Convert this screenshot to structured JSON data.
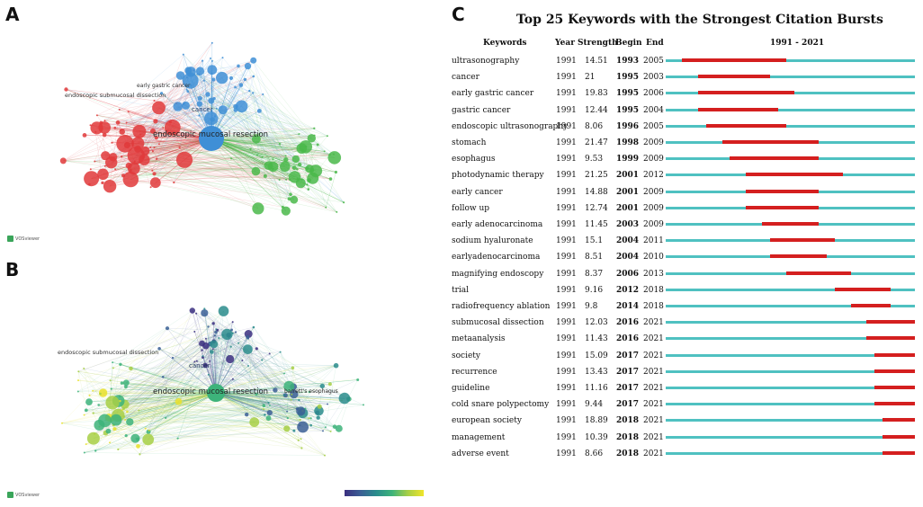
{
  "panels": {
    "a": "A",
    "b": "B",
    "c": "C"
  },
  "network_a": {
    "labels": {
      "cancer": "cancer",
      "emr": "endoscopic mucosal resection",
      "esd": "endoscopic submucosal dissection",
      "early_gastric": "early gastric cancer"
    },
    "logo": "VOSviewer"
  },
  "network_b": {
    "labels": {
      "cancer": "cancer",
      "emr": "endoscopic mucosal resection",
      "esd": "endoscopic submucosal dissection",
      "barrett": "barrett's esophagus"
    },
    "logo": "VOSviewer"
  },
  "chart_data": {
    "type": "table",
    "title": "Top 25 Keywords with the Strongest Citation Bursts",
    "headers": {
      "keywords": "Keywords",
      "year": "Year",
      "strength": "Strength",
      "begin": "Begin",
      "end": "End",
      "range": "1991 - 2021"
    },
    "range_start": 1991,
    "range_end": 2021,
    "rows": [
      {
        "keyword": "ultrasonography",
        "year": "1991",
        "strength": "14.51",
        "begin": "1993",
        "end": "2005"
      },
      {
        "keyword": "cancer",
        "year": "1991",
        "strength": "21",
        "begin": "1995",
        "end": "2003"
      },
      {
        "keyword": "early gastric cancer",
        "year": "1991",
        "strength": "19.83",
        "begin": "1995",
        "end": "2006"
      },
      {
        "keyword": "gastric cancer",
        "year": "1991",
        "strength": "12.44",
        "begin": "1995",
        "end": "2004"
      },
      {
        "keyword": "endoscopic ultrasonography",
        "year": "1991",
        "strength": "8.06",
        "begin": "1996",
        "end": "2005"
      },
      {
        "keyword": "stomach",
        "year": "1991",
        "strength": "21.47",
        "begin": "1998",
        "end": "2009"
      },
      {
        "keyword": "esophagus",
        "year": "1991",
        "strength": "9.53",
        "begin": "1999",
        "end": "2009"
      },
      {
        "keyword": "photodynamic therapy",
        "year": "1991",
        "strength": "21.25",
        "begin": "2001",
        "end": "2012"
      },
      {
        "keyword": "early cancer",
        "year": "1991",
        "strength": "14.88",
        "begin": "2001",
        "end": "2009"
      },
      {
        "keyword": "follow up",
        "year": "1991",
        "strength": "12.74",
        "begin": "2001",
        "end": "2009"
      },
      {
        "keyword": "early adenocarcinoma",
        "year": "1991",
        "strength": "11.45",
        "begin": "2003",
        "end": "2009"
      },
      {
        "keyword": "sodium hyaluronate",
        "year": "1991",
        "strength": "15.1",
        "begin": "2004",
        "end": "2011"
      },
      {
        "keyword": "earlyadenocarcinoma",
        "year": "1991",
        "strength": "8.51",
        "begin": "2004",
        "end": "2010"
      },
      {
        "keyword": "magnifying endoscopy",
        "year": "1991",
        "strength": "8.37",
        "begin": "2006",
        "end": "2013"
      },
      {
        "keyword": "trial",
        "year": "1991",
        "strength": "9.16",
        "begin": "2012",
        "end": "2018"
      },
      {
        "keyword": "radiofrequency ablation",
        "year": "1991",
        "strength": "9.8",
        "begin": "2014",
        "end": "2018"
      },
      {
        "keyword": "submucosal dissection",
        "year": "1991",
        "strength": "12.03",
        "begin": "2016",
        "end": "2021"
      },
      {
        "keyword": "metaanalysis",
        "year": "1991",
        "strength": "11.43",
        "begin": "2016",
        "end": "2021"
      },
      {
        "keyword": "society",
        "year": "1991",
        "strength": "15.09",
        "begin": "2017",
        "end": "2021"
      },
      {
        "keyword": "recurrence",
        "year": "1991",
        "strength": "13.43",
        "begin": "2017",
        "end": "2021"
      },
      {
        "keyword": "guideline",
        "year": "1991",
        "strength": "11.16",
        "begin": "2017",
        "end": "2021"
      },
      {
        "keyword": "cold snare polypectomy",
        "year": "1991",
        "strength": "9.44",
        "begin": "2017",
        "end": "2021"
      },
      {
        "keyword": "european society",
        "year": "1991",
        "strength": "18.89",
        "begin": "2018",
        "end": "2021"
      },
      {
        "keyword": "management",
        "year": "1991",
        "strength": "10.39",
        "begin": "2018",
        "end": "2021"
      },
      {
        "keyword": "adverse event",
        "year": "1991",
        "strength": "8.66",
        "begin": "2018",
        "end": "2021"
      }
    ]
  },
  "colors": {
    "timeline": "#4fc1c1",
    "burst": "#d41f1f",
    "cluster_red": "#e0393b",
    "cluster_blue": "#3f8fd6",
    "cluster_green": "#4ab84a"
  }
}
